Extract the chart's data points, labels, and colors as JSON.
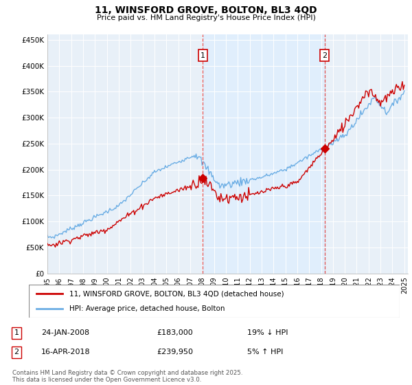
{
  "title": "11, WINSFORD GROVE, BOLTON, BL3 4QD",
  "subtitle": "Price paid vs. HM Land Registry's House Price Index (HPI)",
  "ylim": [
    0,
    460000
  ],
  "yticks": [
    0,
    50000,
    100000,
    150000,
    200000,
    250000,
    300000,
    350000,
    400000,
    450000
  ],
  "ytick_labels": [
    "£0",
    "£50K",
    "£100K",
    "£150K",
    "£200K",
    "£250K",
    "£300K",
    "£350K",
    "£400K",
    "£450K"
  ],
  "hpi_color": "#6aade4",
  "price_color": "#cc0000",
  "sale1_date": 2008.07,
  "sale1_price": 183000,
  "sale1_label": "1",
  "sale2_date": 2018.29,
  "sale2_price": 239950,
  "sale2_label": "2",
  "vline_color": "#e05050",
  "shade_color": "#ddeeff",
  "background_color": "#e8f0f8",
  "legend_house": "11, WINSFORD GROVE, BOLTON, BL3 4QD (detached house)",
  "legend_hpi": "HPI: Average price, detached house, Bolton",
  "footnote": "Contains HM Land Registry data © Crown copyright and database right 2025.\nThis data is licensed under the Open Government Licence v3.0.",
  "table_row1": [
    "1",
    "24-JAN-2008",
    "£183,000",
    "19% ↓ HPI"
  ],
  "table_row2": [
    "2",
    "16-APR-2018",
    "£239,950",
    "5% ↑ HPI"
  ]
}
